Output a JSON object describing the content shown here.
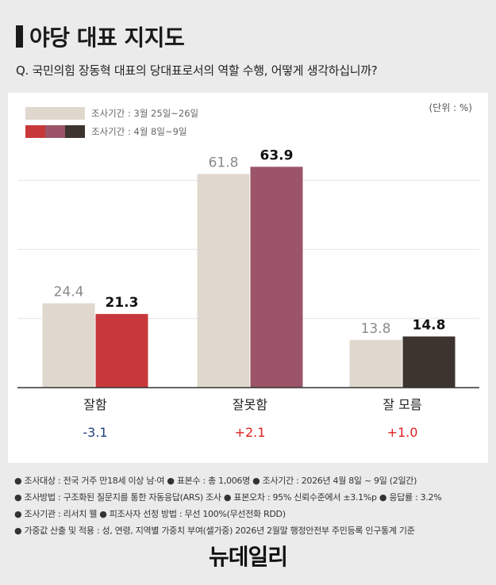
{
  "title": "야당 대표 지지도",
  "question": "Q. 국민의힘 장동혁 대표의 당대표로서의 역할 수행, 어떻게 생각하십니까?",
  "unit": "(단위 : %)",
  "legend": [
    {
      "label": "조사기간 : 3월 25일~26일",
      "colors": [
        "#e0d7ce"
      ]
    },
    {
      "label": "조사기간 : 4월 8일~9일",
      "colors": [
        "#c8383b",
        "#9b5468",
        "#3d342f"
      ]
    }
  ],
  "chart_data": {
    "type": "bar",
    "categories": [
      "잘함",
      "잘못함",
      "잘 모름"
    ],
    "series": [
      {
        "name": "조사기간 : 3월 25일~26일",
        "values": [
          24.4,
          61.8,
          13.8
        ],
        "colors": [
          "#e0d7ce",
          "#e0d7ce",
          "#e0d7ce"
        ]
      },
      {
        "name": "조사기간 : 4월 8일~9일",
        "values": [
          21.3,
          63.9,
          14.8
        ],
        "colors": [
          "#c8383b",
          "#9b5468",
          "#3d342f"
        ]
      }
    ],
    "changes": [
      "-3.1",
      "+2.1",
      "+1.0"
    ],
    "change_colors": [
      "#1f3f7a",
      "#e02020",
      "#e02020"
    ],
    "ylim": [
      0,
      70
    ],
    "grid": true
  },
  "notes": [
    "● 조사대상 : 전국 거주 만18세 이상 남·여  ● 표본수 : 총 1,006명  ● 조사기간 : 2026년 4월 8일 ~ 9일 (2일간)",
    "● 조사방법 : 구조화된 질문지를 통한 자동응답(ARS) 조사  ● 표본오차 : 95% 신뢰수준에서 ±3.1%p  ● 응답률 : 3.2%",
    "● 조사기관 : 리서치 웰  ● 피조사자 선정 방법 : 무선 100%(무선전화 RDD)",
    "● 가중값 산출 및 적용 : 성, 연령, 지역별 가중치 부여(셀가중) 2026년 2월말 행정안전부 주민등록 인구통계 기준"
  ],
  "logo": "뉴데일리"
}
